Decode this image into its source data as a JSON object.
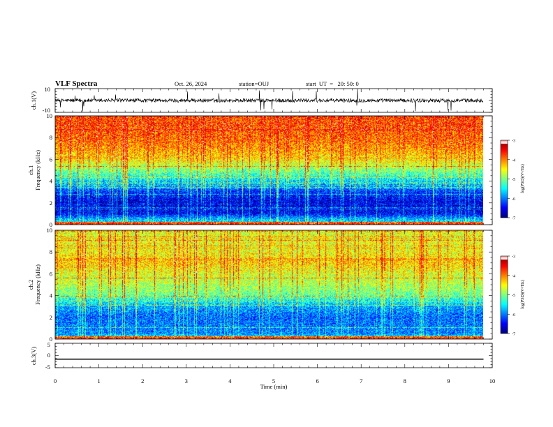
{
  "header": {
    "title": "VLF Spectra",
    "date": "Oct. 26, 2024",
    "station": "station=OUJ",
    "start": "start  UT  =   20: 50: 0"
  },
  "chart_data": [
    {
      "id": "ch1_waveform",
      "type": "line",
      "ylabel": "ch.1(V)",
      "ylim": [
        -10,
        10
      ],
      "yticks": [
        "10",
        "-10"
      ],
      "xlim": [
        0,
        10
      ],
      "description_level": 0,
      "series": [
        {
          "values_range": [
            -2,
            2
          ]
        }
      ]
    },
    {
      "id": "ch1_spectrogram",
      "type": "heatmap",
      "ylabel": "ch.1",
      "ylabel2": "Frequency (kHz)",
      "ylim": [
        0,
        10
      ],
      "yticks": [
        "0",
        "2",
        "4",
        "6",
        "8",
        "10"
      ],
      "xlim": [
        0,
        9.8
      ],
      "colorbar": {
        "label": "log(PSD)(V²/Hz)",
        "range": [
          -7,
          -3
        ],
        "ticks": [
          "-3",
          "-4",
          "-5",
          "-6",
          "-7"
        ]
      },
      "levels_by_freq_khz": [
        {
          "f": 0.0,
          "v": -5.4
        },
        {
          "f": 0.5,
          "v": -5.8
        },
        {
          "f": 1.0,
          "v": -6.5
        },
        {
          "f": 2.0,
          "v": -6.6
        },
        {
          "f": 3.0,
          "v": -6.3
        },
        {
          "f": 4.0,
          "v": -5.6
        },
        {
          "f": 5.0,
          "v": -5.0
        },
        {
          "f": 6.0,
          "v": -4.4
        },
        {
          "f": 7.0,
          "v": -4.1
        },
        {
          "f": 8.0,
          "v": -3.9
        },
        {
          "f": 10.0,
          "v": -3.8
        }
      ]
    },
    {
      "id": "ch2_spectrogram",
      "type": "heatmap",
      "ylabel": "ch.2",
      "ylabel2": "Frequency (kHz)",
      "ylim": [
        0,
        10
      ],
      "yticks": [
        "0",
        "2",
        "4",
        "6",
        "8",
        "10"
      ],
      "xlim": [
        0,
        9.8
      ],
      "colorbar": {
        "label": "log(PSD)(V²/Hz)",
        "range": [
          -7,
          -3
        ],
        "ticks": [
          "-3",
          "-4",
          "-5",
          "-6",
          "-7"
        ]
      },
      "levels_by_freq_khz": [
        {
          "f": 0.0,
          "v": -5.3
        },
        {
          "f": 0.5,
          "v": -6.0
        },
        {
          "f": 1.0,
          "v": -6.0
        },
        {
          "f": 2.0,
          "v": -6.1
        },
        {
          "f": 3.0,
          "v": -5.8
        },
        {
          "f": 4.0,
          "v": -5.1
        },
        {
          "f": 5.0,
          "v": -4.8
        },
        {
          "f": 6.0,
          "v": -4.6
        },
        {
          "f": 7.0,
          "v": -4.3
        },
        {
          "f": 8.0,
          "v": -4.5
        },
        {
          "f": 10.0,
          "v": -4.6
        }
      ]
    },
    {
      "id": "ch3_waveform",
      "type": "line",
      "ylabel": "ch.3(V)",
      "ylim": [
        -5,
        5
      ],
      "yticks": [
        "5",
        "0",
        "-5"
      ],
      "xlim": [
        0,
        10
      ],
      "xlabel": "Time (min)",
      "xticks": [
        "0",
        "1",
        "2",
        "3",
        "4",
        "5",
        "6",
        "7",
        "8",
        "9",
        "10"
      ],
      "series": [
        {
          "constant_value": -1.5
        }
      ]
    }
  ],
  "colors": {
    "jet": [
      "#000080",
      "#0000ff",
      "#0080ff",
      "#00ffff",
      "#80ff80",
      "#ffff00",
      "#ff8000",
      "#ff0000",
      "#ffffff"
    ]
  }
}
